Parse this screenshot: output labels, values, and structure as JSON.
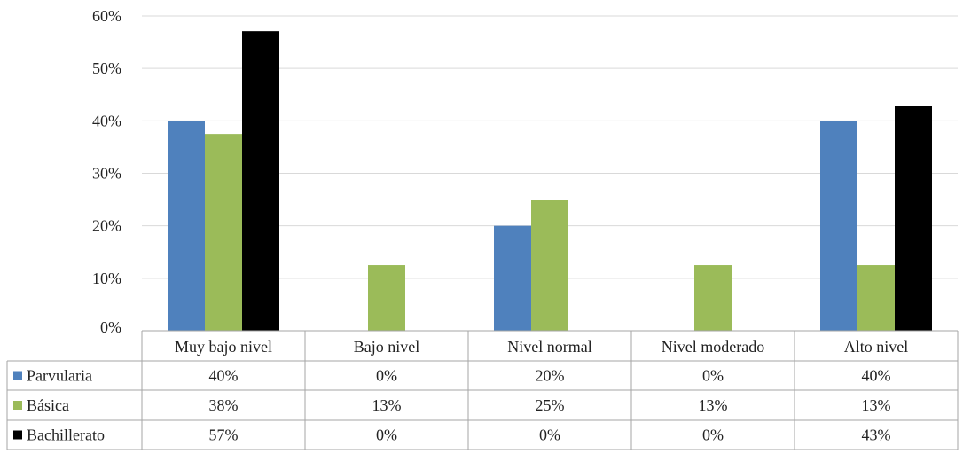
{
  "chart_data": {
    "type": "bar",
    "categories": [
      "Muy bajo nivel",
      "Bajo nivel",
      "Nivel normal",
      "Nivel moderado",
      "Alto nivel"
    ],
    "ylim": [
      0,
      60
    ],
    "yticks": [
      "0%",
      "10%",
      "20%",
      "30%",
      "40%",
      "50%",
      "60%"
    ],
    "grid": true,
    "legend": "data-table",
    "series": [
      {
        "name": "Parvularia",
        "color": "#4f81bd",
        "values": [
          40,
          0,
          20,
          0,
          40
        ],
        "labels": [
          "40%",
          "0%",
          "20%",
          "0%",
          "40%"
        ]
      },
      {
        "name": "Básica",
        "color": "#9bbb59",
        "values": [
          37.5,
          12.5,
          25,
          12.5,
          12.5
        ],
        "labels": [
          "38%",
          "13%",
          "25%",
          "13%",
          "13%"
        ]
      },
      {
        "name": "Bachillerato",
        "color": "#000000",
        "values": [
          57.1,
          0,
          0,
          0,
          42.9
        ],
        "labels": [
          "57%",
          "0%",
          "0%",
          "0%",
          "43%"
        ]
      }
    ]
  }
}
